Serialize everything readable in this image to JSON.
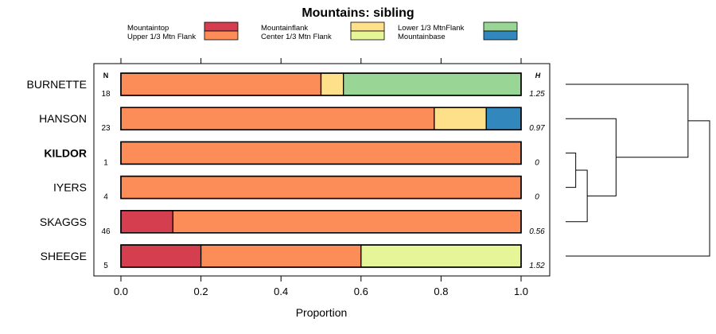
{
  "chart_data": {
    "type": "bar",
    "orientation": "horizontal-stacked",
    "title": "Mountains: sibling",
    "xlabel": "Proportion",
    "xlim": [
      0,
      1
    ],
    "xticks": [
      "0.0",
      "0.2",
      "0.4",
      "0.6",
      "0.8",
      "1.0"
    ],
    "n_header": "N",
    "h_header": "H",
    "legend_position": "top",
    "categories": [
      {
        "label": "BURNETTE",
        "bold": false,
        "n": "18",
        "h": "1.25"
      },
      {
        "label": "HANSON",
        "bold": false,
        "n": "23",
        "h": "0.97"
      },
      {
        "label": "KILDOR",
        "bold": true,
        "n": "1",
        "h": "0"
      },
      {
        "label": "IYERS",
        "bold": false,
        "n": "4",
        "h": "0"
      },
      {
        "label": "SKAGGS",
        "bold": false,
        "n": "46",
        "h": "0.56"
      },
      {
        "label": "SHEEGE",
        "bold": false,
        "n": "5",
        "h": "1.52"
      }
    ],
    "series": [
      {
        "name": "Mountaintop",
        "color": "#d53e4f",
        "values": [
          0,
          0,
          0,
          0,
          0.13,
          0.2
        ]
      },
      {
        "name": "Upper 1/3 Mtn Flank",
        "color": "#fc8d59",
        "values": [
          0.5,
          0.783,
          1,
          1,
          0.87,
          0.4
        ]
      },
      {
        "name": "Mountainflank",
        "color": "#fee08b",
        "values": [
          0.056,
          0.13,
          0,
          0,
          0,
          0
        ]
      },
      {
        "name": "Center 1/3 Mtn Flank",
        "color": "#e6f598",
        "values": [
          0,
          0,
          0,
          0,
          0,
          0.4
        ]
      },
      {
        "name": "Lower 1/3 MtnFlank",
        "color": "#99d594",
        "values": [
          0.444,
          0,
          0,
          0,
          0,
          0
        ]
      },
      {
        "name": "Mountainbase",
        "color": "#3288bd",
        "values": [
          0,
          0.087,
          0,
          0,
          0,
          0
        ]
      }
    ],
    "dendrogram": {
      "shown": true,
      "merges": [
        {
          "a": "KILDOR",
          "b": "IYERS",
          "height": 0.0
        },
        {
          "a": "KILDOR+IYERS",
          "b": "SKAGGS",
          "height": 0.15
        },
        {
          "a": "KILDOR+IYERS+SKAGGS",
          "b": "HANSON",
          "height": 0.35
        },
        {
          "a": "BURNETTE",
          "b": "KILDOR+IYERS+SKAGGS+HANSON",
          "height": 0.85
        },
        {
          "a": "ALL_EXCEPT_SHEEGE",
          "b": "SHEEGE",
          "height": 1.0
        }
      ]
    }
  }
}
